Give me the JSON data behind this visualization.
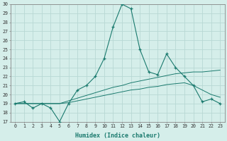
{
  "xlabel": "Humidex (Indice chaleur)",
  "x": [
    0,
    1,
    2,
    3,
    4,
    5,
    6,
    7,
    8,
    9,
    10,
    11,
    12,
    13,
    14,
    15,
    16,
    17,
    18,
    19,
    20,
    21,
    22,
    23
  ],
  "humidex": [
    19,
    19.2,
    18.5,
    19,
    18.5,
    17,
    19,
    20.5,
    21,
    22,
    24,
    27.5,
    30,
    29.5,
    25,
    22.5,
    22.2,
    24.5,
    23,
    22,
    21,
    19.2,
    19.5,
    19
  ],
  "line_rising": [
    19,
    19,
    19,
    19,
    19,
    19,
    19.3,
    19.6,
    19.9,
    20.2,
    20.5,
    20.8,
    21.0,
    21.3,
    21.5,
    21.7,
    21.9,
    22.1,
    22.3,
    22.4,
    22.5,
    22.5,
    22.6,
    22.7
  ],
  "line_flat": [
    19,
    19,
    19,
    19,
    19,
    19,
    19.1,
    19.3,
    19.5,
    19.7,
    19.9,
    20.1,
    20.3,
    20.5,
    20.6,
    20.8,
    20.9,
    21.1,
    21.2,
    21.3,
    21.0,
    20.5,
    20.0,
    19.7
  ],
  "ylim": [
    17,
    30
  ],
  "yticks": [
    17,
    18,
    19,
    20,
    21,
    22,
    23,
    24,
    25,
    26,
    27,
    28,
    29,
    30
  ],
  "xticks": [
    0,
    1,
    2,
    3,
    4,
    5,
    6,
    7,
    8,
    9,
    10,
    11,
    12,
    13,
    14,
    15,
    16,
    17,
    18,
    19,
    20,
    21,
    22,
    23
  ],
  "line_color": "#1a7a6e",
  "bg_color": "#d5eeea",
  "grid_color": "#b8d8d4"
}
